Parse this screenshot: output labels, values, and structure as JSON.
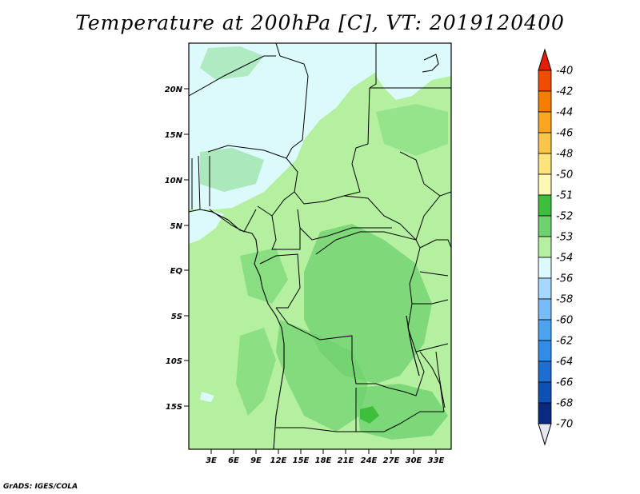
{
  "title": "Temperature at 200hPa [C], VT: 2019120400",
  "credit": "GrADS: IGES/COLA",
  "map": {
    "lat_ticks": [
      "20N",
      "15N",
      "10N",
      "5N",
      "EQ",
      "5S",
      "10S",
      "15S"
    ],
    "lon_ticks": [
      "3E",
      "6E",
      "9E",
      "12E",
      "15E",
      "18E",
      "21E",
      "24E",
      "27E",
      "30E",
      "33E"
    ]
  },
  "colorbar": {
    "levels": [
      "-40",
      "-42",
      "-44",
      "-46",
      "-48",
      "-50",
      "-51",
      "-52",
      "-53",
      "-54",
      "-56",
      "-58",
      "-60",
      "-62",
      "-64",
      "-66",
      "-68",
      "-70"
    ],
    "colors": [
      "#e51e00",
      "#f04c00",
      "#f57d00",
      "#faa61e",
      "#fbc44a",
      "#fde37c",
      "#fdf8b4",
      "#3dbe3d",
      "#6ed26e",
      "#b4f0a0",
      "#dcfafc",
      "#a5d7ff",
      "#78bcf7",
      "#4ea3ef",
      "#328ce6",
      "#1e6ed2",
      "#0f50b4",
      "#0a2a80",
      "#0a1464"
    ],
    "top_color": "#e51e00",
    "bottom_color": "#e6e6f0"
  }
}
